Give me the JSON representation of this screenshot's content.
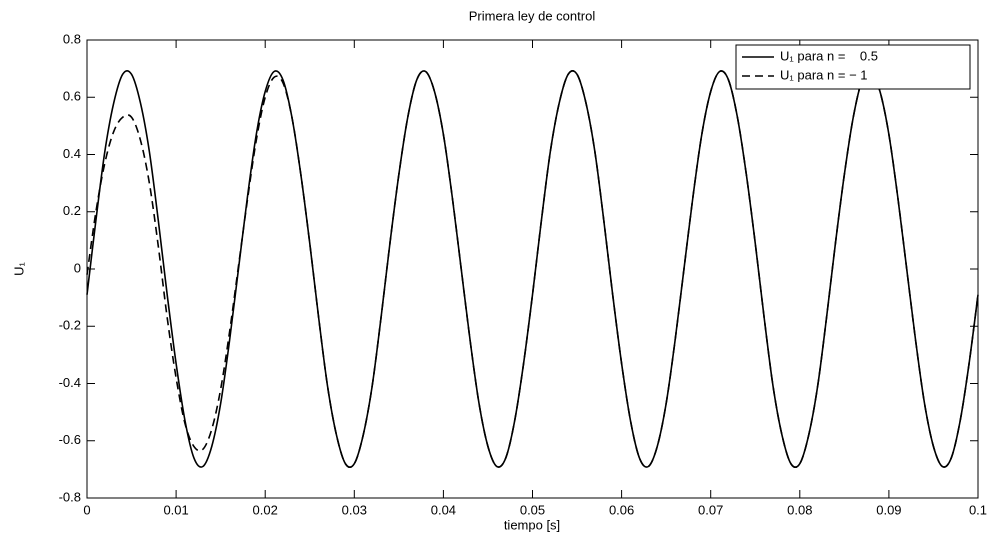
{
  "chart_data": {
    "type": "line",
    "title": "Primera ley de control",
    "xlabel": "tiempo [s]",
    "ylabel": "U₁",
    "x": [
      0,
      0.001,
      0.002,
      0.003,
      0.004,
      0.005,
      0.006,
      0.007,
      0.008,
      0.009,
      0.01,
      0.011,
      0.012,
      0.013,
      0.014,
      0.015,
      0.016,
      0.017,
      0.018,
      0.019,
      0.02,
      0.021,
      0.022,
      0.023,
      0.024,
      0.025,
      0.026,
      0.027,
      0.028,
      0.029,
      0.03,
      0.031,
      0.032,
      0.033,
      0.034,
      0.035,
      0.036,
      0.037,
      0.038,
      0.039,
      0.04,
      0.041,
      0.042,
      0.043,
      0.044,
      0.045,
      0.046,
      0.047,
      0.048,
      0.049,
      0.05,
      0.051,
      0.052,
      0.053,
      0.054,
      0.055,
      0.056,
      0.057,
      0.058,
      0.059,
      0.06,
      0.061,
      0.062,
      0.063,
      0.064,
      0.065,
      0.066,
      0.067,
      0.068,
      0.069,
      0.07,
      0.071,
      0.072,
      0.073,
      0.074,
      0.075,
      0.076,
      0.077,
      0.078,
      0.079,
      0.08,
      0.081,
      0.082,
      0.083,
      0.084,
      0.085,
      0.086,
      0.087,
      0.088,
      0.089,
      0.09,
      0.091,
      0.092,
      0.093,
      0.094,
      0.095,
      0.096,
      0.097,
      0.098,
      0.099,
      0.1
    ],
    "series": [
      {
        "name": "U₁ para n =    0.5",
        "color": "#000000",
        "dash": "solid",
        "values": [
          -0.09,
          0.17,
          0.41,
          0.58,
          0.68,
          0.68,
          0.58,
          0.41,
          0.17,
          -0.09,
          -0.33,
          -0.53,
          -0.66,
          -0.69,
          -0.62,
          -0.47,
          -0.25,
          0.0,
          0.25,
          0.47,
          0.62,
          0.69,
          0.66,
          0.53,
          0.33,
          0.09,
          -0.17,
          -0.41,
          -0.58,
          -0.68,
          -0.68,
          -0.58,
          -0.41,
          -0.17,
          0.09,
          0.33,
          0.53,
          0.66,
          0.69,
          0.62,
          0.47,
          0.25,
          0.0,
          -0.25,
          -0.47,
          -0.62,
          -0.69,
          -0.66,
          -0.53,
          -0.33,
          -0.09,
          0.17,
          0.41,
          0.58,
          0.68,
          0.68,
          0.58,
          0.41,
          0.17,
          -0.09,
          -0.33,
          -0.53,
          -0.66,
          -0.69,
          -0.62,
          -0.47,
          -0.25,
          0.0,
          0.25,
          0.47,
          0.62,
          0.69,
          0.66,
          0.53,
          0.33,
          0.09,
          -0.17,
          -0.41,
          -0.58,
          -0.68,
          -0.68,
          -0.58,
          -0.41,
          -0.17,
          0.09,
          0.33,
          0.53,
          0.66,
          0.69,
          0.62,
          0.47,
          0.25,
          0.0,
          -0.25,
          -0.47,
          -0.62,
          -0.69,
          -0.66,
          -0.53,
          -0.33,
          -0.09
        ]
      },
      {
        "name": "U₁ para n = − 1",
        "color": "#000000",
        "dash": "dashed",
        "values": [
          -0.02,
          0.2,
          0.37,
          0.48,
          0.53,
          0.53,
          0.45,
          0.3,
          0.08,
          -0.17,
          -0.38,
          -0.54,
          -0.62,
          -0.63,
          -0.56,
          -0.42,
          -0.22,
          0.01,
          0.24,
          0.45,
          0.6,
          0.67,
          0.65,
          0.53,
          0.33,
          0.09,
          -0.17,
          -0.41,
          -0.58,
          -0.68,
          -0.68,
          -0.58,
          -0.41,
          -0.17,
          0.09,
          0.33,
          0.53,
          0.66,
          0.69,
          0.62,
          0.47,
          0.25,
          0.0,
          -0.25,
          -0.47,
          -0.62,
          -0.69,
          -0.66,
          -0.53,
          -0.33,
          -0.09,
          0.17,
          0.41,
          0.58,
          0.68,
          0.68,
          0.58,
          0.41,
          0.17,
          -0.09,
          -0.33,
          -0.53,
          -0.66,
          -0.69,
          -0.62,
          -0.47,
          -0.25,
          0.0,
          0.25,
          0.47,
          0.62,
          0.69,
          0.66,
          0.53,
          0.33,
          0.09,
          -0.17,
          -0.41,
          -0.58,
          -0.68,
          -0.68,
          -0.58,
          -0.41,
          -0.17,
          0.09,
          0.33,
          0.53,
          0.66,
          0.69,
          0.62,
          0.47,
          0.25,
          0.0,
          -0.25,
          -0.47,
          -0.62,
          -0.69,
          -0.66,
          -0.53,
          -0.33,
          -0.09
        ]
      }
    ],
    "xlim": [
      0,
      0.1
    ],
    "xticks": [
      0,
      0.01,
      0.02,
      0.03,
      0.04,
      0.05,
      0.06,
      0.07,
      0.08,
      0.09,
      0.1
    ],
    "ylim": [
      -0.8,
      0.8
    ],
    "yticks": [
      -0.8,
      -0.6,
      -0.4,
      -0.2,
      0,
      0.2,
      0.4,
      0.6,
      0.8
    ],
    "grid": false,
    "legend": "upper right"
  }
}
